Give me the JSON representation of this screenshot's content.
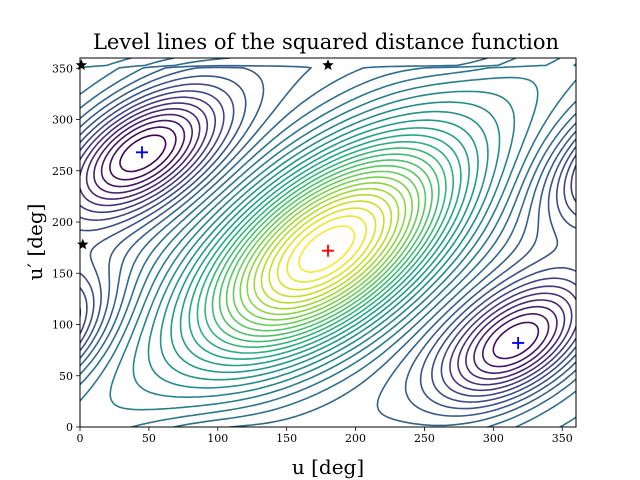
{
  "chart_data": {
    "type": "contour",
    "title": "Level lines of the squared distance function",
    "xlabel": "u [deg]",
    "ylabel": "u′ [deg]",
    "xlim": [
      0,
      360
    ],
    "ylim": [
      0,
      360
    ],
    "xticks": [
      "0",
      "50",
      "100",
      "150",
      "200",
      "250",
      "300",
      "350"
    ],
    "yticks": [
      "0",
      "50",
      "100",
      "150",
      "200",
      "250",
      "300",
      "350"
    ],
    "grid": false,
    "colormap": "viridis",
    "contour_levels": 36,
    "markers": [
      {
        "kind": "plus",
        "color": "#ff0000",
        "x": 180,
        "y": 172,
        "role": "maximum"
      },
      {
        "kind": "plus",
        "color": "#0000ff",
        "x": 45,
        "y": 268,
        "role": "minimum"
      },
      {
        "kind": "plus",
        "color": "#0000ff",
        "x": 318,
        "y": 82,
        "role": "minimum"
      },
      {
        "kind": "star",
        "color": "#000000",
        "x": 180,
        "y": 353,
        "role": "saddle"
      },
      {
        "kind": "star",
        "color": "#000000",
        "x": 2,
        "y": 178,
        "role": "saddle"
      },
      {
        "kind": "star",
        "color": "#000000",
        "x": 1,
        "y": 353,
        "role": "saddle"
      }
    ]
  }
}
